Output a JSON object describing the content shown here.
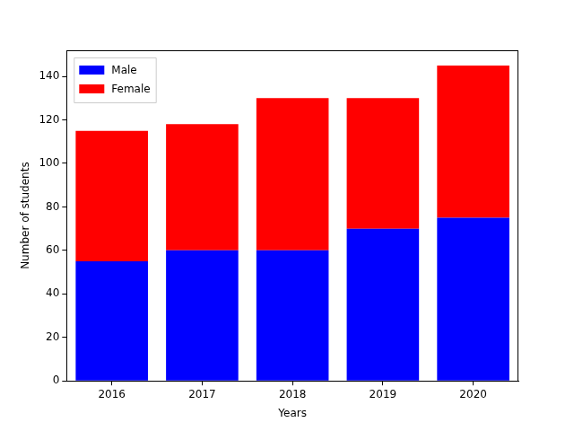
{
  "chart_data": {
    "type": "bar",
    "stacked": true,
    "x_label": "Years",
    "y_label": "Number of students",
    "categories": [
      "2016",
      "2017",
      "2018",
      "2019",
      "2020"
    ],
    "series": [
      {
        "name": "Male",
        "color": "#0000ff",
        "values": [
          55,
          60,
          60,
          70,
          75
        ]
      },
      {
        "name": "Female",
        "color": "#ff0000",
        "values": [
          60,
          58,
          70,
          60,
          70
        ]
      }
    ],
    "ylim": [
      0,
      152
    ],
    "yticks": [
      0,
      20,
      40,
      60,
      80,
      100,
      120,
      140
    ],
    "grid": false,
    "legend": "upper left"
  }
}
